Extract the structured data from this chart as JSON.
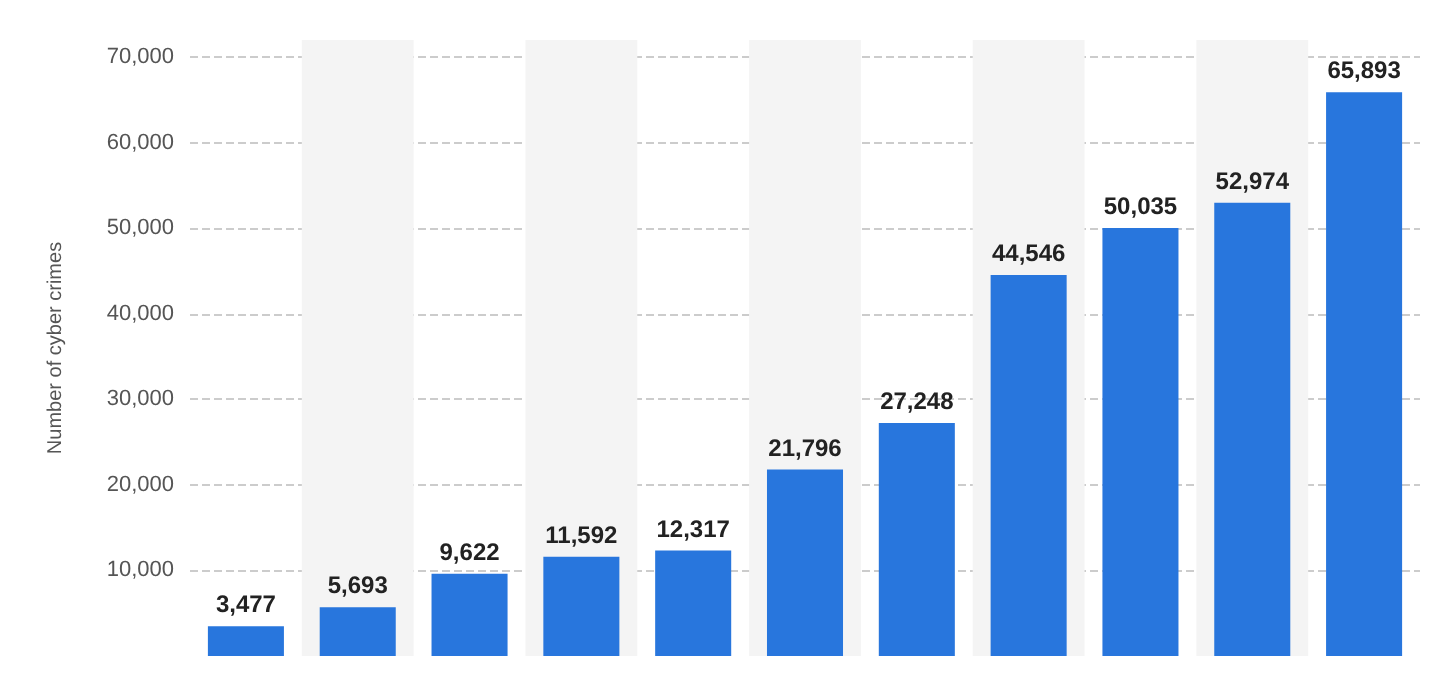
{
  "chart_data": {
    "type": "bar",
    "ylabel": "Number of cyber crimes",
    "categories": [
      null,
      null,
      null,
      null,
      null,
      null,
      null,
      null,
      null,
      null,
      null
    ],
    "values": [
      3477,
      5693,
      9622,
      11592,
      12317,
      21796,
      27248,
      44546,
      50035,
      52974,
      65893
    ],
    "value_labels": [
      "3,477",
      "5,693",
      "9,622",
      "11,592",
      "12,317",
      "21,796",
      "27,248",
      "44,546",
      "50,035",
      "52,974",
      "65,893"
    ],
    "color": "#2876dd",
    "grid": "y",
    "ylim": [
      0,
      72000
    ],
    "yticks": [
      {
        "value": 10000,
        "label": "10,000"
      },
      {
        "value": 20000,
        "label": "20,000"
      },
      {
        "value": 30000,
        "label": "30,000"
      },
      {
        "value": 40000,
        "label": "40,000"
      },
      {
        "value": 50000,
        "label": "50,000"
      },
      {
        "value": 60000,
        "label": "60,000"
      },
      {
        "value": 70000,
        "label": "70,000"
      }
    ]
  }
}
